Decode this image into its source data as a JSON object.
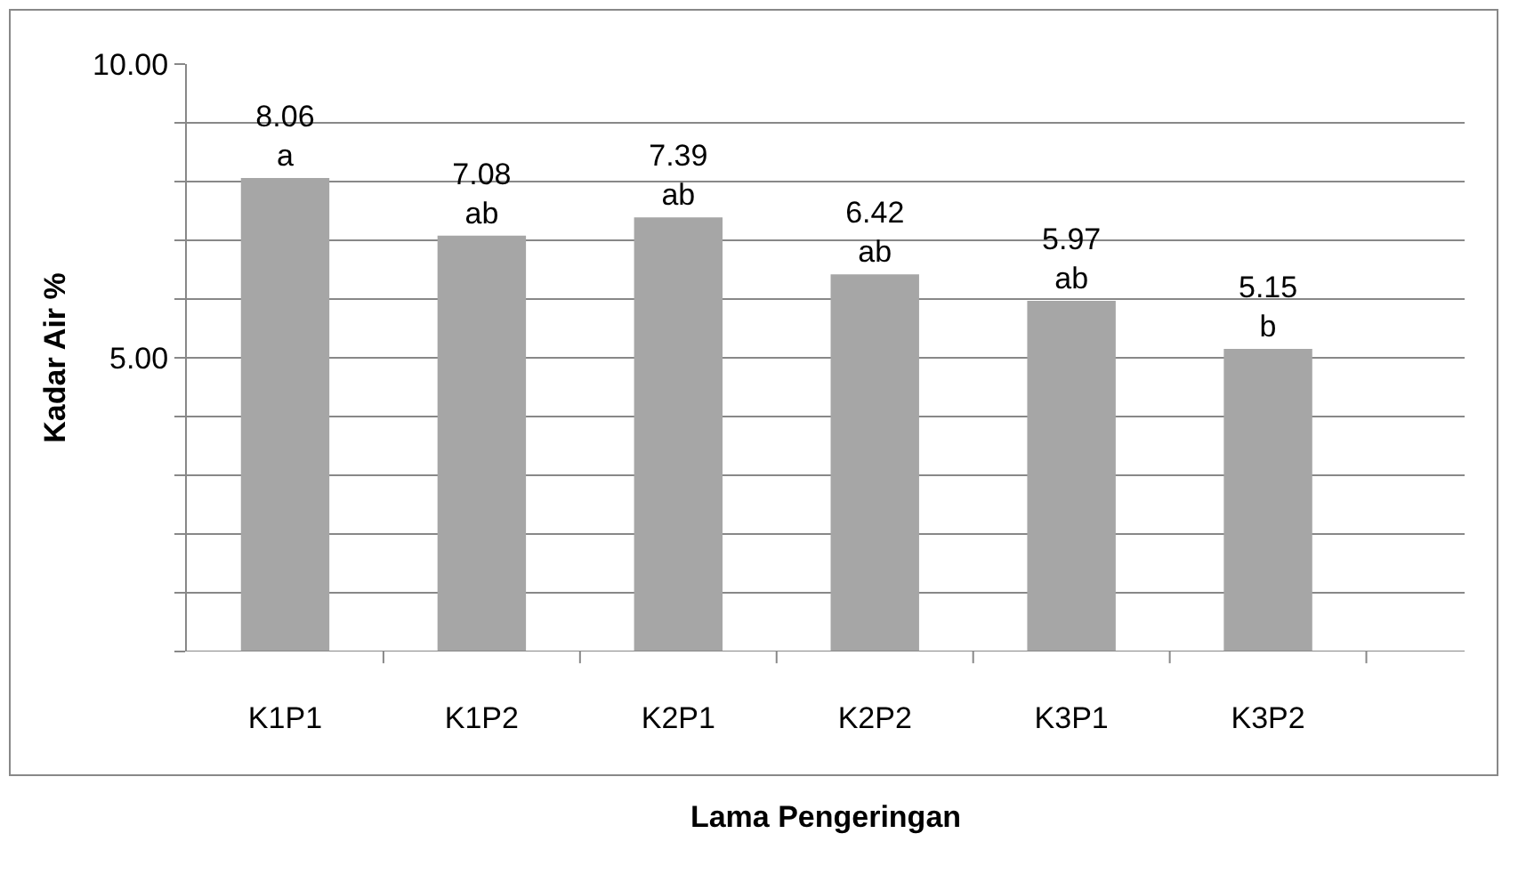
{
  "chart_data": {
    "type": "bar",
    "xlabel": "Lama Pengeringan",
    "ylabel": "Kadar Air %",
    "categories": [
      "K1P1",
      "K1P2",
      "K2P1",
      "K2P2",
      "K3P1",
      "K3P2"
    ],
    "values": [
      8.06,
      7.08,
      7.39,
      6.42,
      5.97,
      5.15
    ],
    "value_labels": [
      "8.06\na",
      "7.08\nab",
      "7.39\nab",
      "6.42\nab",
      "5.97\nab",
      "5.15\nb"
    ],
    "color": "#a6a6a6",
    "ylim": [
      0,
      10
    ],
    "yticks": [
      {
        "value": 0,
        "label": null
      },
      {
        "value": 1,
        "label": null
      },
      {
        "value": 2,
        "label": null
      },
      {
        "value": 3,
        "label": null
      },
      {
        "value": 4,
        "label": null
      },
      {
        "value": 5,
        "label": "5.00"
      },
      {
        "value": 6,
        "label": null
      },
      {
        "value": 7,
        "label": null
      },
      {
        "value": 8,
        "label": null
      },
      {
        "value": 9,
        "label": null
      },
      {
        "value": 10,
        "label": "10.00"
      }
    ],
    "grid": "y",
    "legend": false
  }
}
